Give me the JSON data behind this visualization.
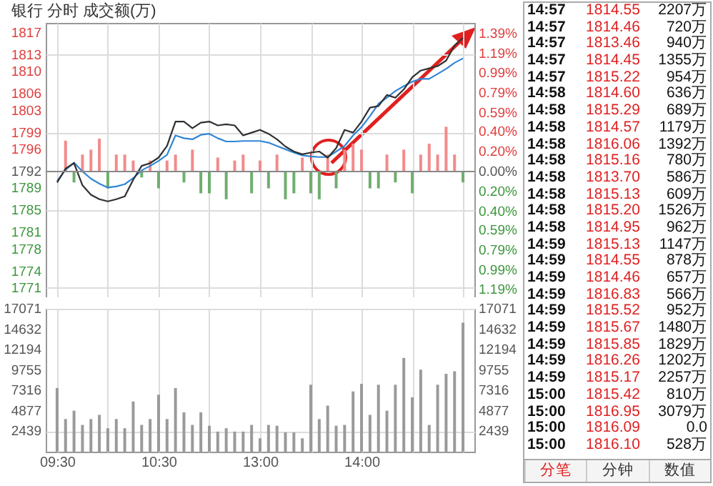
{
  "chart_data": [
    {
      "type": "line",
      "title": "银行 分时 成交额(万)",
      "categories": [
        null,
        null,
        null,
        null,
        null,
        null,
        null,
        null,
        null,
        null,
        null,
        null,
        null,
        null,
        null,
        null,
        null,
        null,
        null,
        null,
        null,
        null,
        null,
        null,
        null,
        null,
        null,
        null,
        null,
        null,
        null,
        null,
        null,
        null,
        null,
        null,
        null,
        null,
        null,
        null,
        null,
        null,
        null,
        null,
        null,
        null,
        null,
        null,
        null
      ],
      "ylim": [
        1769.3,
        1818.8
      ],
      "yticks": [
        1817,
        1813,
        1810,
        1806,
        1803,
        1799,
        1796,
        1792,
        1789,
        1785,
        1781,
        1778,
        1774,
        1771
      ],
      "y2lim": [
        -1.267,
        1.496
      ],
      "y2ticks": [
        {
          "value": 1.39,
          "label": "1.39%"
        },
        {
          "value": 1.19,
          "label": "1.19%"
        },
        {
          "value": 0.99,
          "label": "0.99%"
        },
        {
          "value": 0.79,
          "label": "0.79%"
        },
        {
          "value": 0.59,
          "label": "0.59%"
        },
        {
          "value": 0.4,
          "label": "0.40%"
        },
        {
          "value": 0.2,
          "label": "0.20%"
        },
        {
          "value": 0,
          "label": "0.00%"
        },
        {
          "value": -0.2,
          "label": "0.20%"
        },
        {
          "value": -0.4,
          "label": "0.40%"
        },
        {
          "value": -0.59,
          "label": "0.59%"
        },
        {
          "value": -0.79,
          "label": "0.79%"
        },
        {
          "value": -0.99,
          "label": "0.99%"
        },
        {
          "value": -1.19,
          "label": "1.19%"
        }
      ],
      "grid": true,
      "tick_labels": "y",
      "ref_lines": [
        {
          "axis": "y",
          "value": 1792,
          "color": "#888888"
        }
      ],
      "series": [
        {
          "type": "bar",
          "axis": "y2",
          "color": "#f28b8b",
          "values": [
            null,
            0.31,
            null,
            0.17,
            0.22,
            0.33,
            null,
            0.17,
            0.17,
            0.11,
            null,
            0.11,
            null,
            0.11,
            0.17,
            null,
            0.22,
            null,
            null,
            0.14,
            null,
            0.11,
            0.17,
            null,
            0.11,
            null,
            0.17,
            null,
            null,
            0.14,
            null,
            null,
            0.17,
            null,
            0.22,
            0.28,
            0.22,
            null,
            null,
            0.17,
            null,
            0.22,
            null,
            0.17,
            0.28,
            0.17,
            0.45,
            0.17,
            null
          ]
        },
        {
          "type": "bar",
          "axis": "y2",
          "color": "#6fae6f",
          "values": [
            null,
            null,
            -0.11,
            null,
            null,
            null,
            -0.17,
            null,
            null,
            null,
            -0.06,
            null,
            -0.17,
            null,
            null,
            -0.11,
            null,
            -0.22,
            -0.22,
            null,
            -0.28,
            null,
            null,
            -0.22,
            null,
            -0.17,
            null,
            -0.28,
            -0.22,
            null,
            -0.22,
            -0.28,
            null,
            -0.17,
            null,
            null,
            null,
            -0.17,
            -0.17,
            null,
            -0.11,
            null,
            -0.22,
            null,
            null,
            null,
            null,
            null,
            -0.11
          ]
        },
        {
          "type": "line",
          "color": "#2f86d6",
          "values": [
            1790.3,
            1792.3,
            1793.6,
            1792,
            1790.7,
            1789.8,
            1789.1,
            1789.3,
            1789.7,
            1790.8,
            1792.2,
            1793,
            1793.9,
            1795,
            1798.5,
            1798,
            1797.8,
            1798.6,
            1798.8,
            1798,
            1797.4,
            1797.4,
            1797.5,
            1797.5,
            1797.5,
            1797.2,
            1796.6,
            1796,
            1795.4,
            1794.9,
            1794.7,
            1794.6,
            1794.6,
            1795.6,
            1796.6,
            1798.5,
            1800,
            1802,
            1804.2,
            1805.3,
            1806.5,
            1807.4,
            1808.2,
            1808.7,
            1808.7,
            1809.6,
            1810.5,
            1811.6,
            1812.4
          ]
        },
        {
          "type": "line",
          "color": "#303030",
          "values": [
            1790,
            1792.5,
            1793.5,
            1789.5,
            1787.8,
            1787,
            1786.6,
            1787,
            1787.5,
            1790.5,
            1793,
            1793.5,
            1794.5,
            1796.6,
            1801,
            1801,
            1799.8,
            1800.8,
            1801,
            1800.3,
            1800.5,
            1800.3,
            1798.5,
            1799,
            1799.5,
            1798.8,
            1797.8,
            1796.5,
            1795.6,
            1795.1,
            1795.4,
            1795.6,
            1794.5,
            1796.2,
            1799.5,
            1799,
            1801,
            1803.5,
            1803.8,
            1805.8,
            1805.3,
            1806.8,
            1809,
            1810.2,
            1810.6,
            1811,
            1812,
            1814.7,
            1816.1
          ]
        }
      ]
    },
    {
      "type": "bar",
      "color": "#9a9a9a",
      "categories": [
        "09:30",
        null,
        null,
        null,
        null,
        null,
        null,
        null,
        null,
        null,
        null,
        null,
        "10:30",
        null,
        null,
        null,
        null,
        null,
        null,
        null,
        null,
        null,
        null,
        null,
        "13:00",
        null,
        null,
        null,
        null,
        null,
        null,
        null,
        null,
        null,
        null,
        null,
        "14:00",
        null,
        null,
        null,
        null,
        null,
        null,
        null,
        null,
        null,
        null,
        null,
        null
      ],
      "values": [
        7600,
        3900,
        4900,
        3200,
        3900,
        4400,
        2800,
        3900,
        2800,
        6000,
        3200,
        3900,
        6800,
        3900,
        7600,
        4700,
        3200,
        4700,
        3100,
        2400,
        2800,
        2400,
        2400,
        3200,
        1600,
        3200,
        3100,
        2300,
        2300,
        1600,
        8000,
        3900,
        5500,
        3100,
        3200,
        7200,
        8100,
        4400,
        8000,
        4900,
        8000,
        11200,
        6500,
        9800,
        3200,
        8000,
        9300,
        9600,
        15400
      ],
      "ylim": [
        0,
        17071
      ],
      "yticks": [
        2439,
        4877,
        7316,
        9755,
        12194,
        14632,
        17071
      ],
      "y2lim": [
        0,
        17071
      ],
      "y2ticks": [
        2439,
        4877,
        7316,
        9755,
        12194,
        14632,
        17071
      ],
      "grid": true
    },
    {
      "type": "other",
      "annotations": [
        "14:57 1814.55 2207万",
        "14:57 1814.46 720万",
        "14:57 1813.46 940万",
        "14:57 1814.45 1355万",
        "14:57 1815.22 954万",
        "14:58 1814.60 636万",
        "14:58 1815.29 689万",
        "14:58 1814.57 1179万",
        "14:58 1816.06 1392万",
        "14:58 1815.16 780万",
        "14:58 1813.70 586万",
        "14:58 1815.13 609万",
        "14:58 1815.20 1526万",
        "14:58 1814.95 962万",
        "14:59 1815.13 1147万",
        "14:59 1814.55 878万",
        "14:59 1814.46 657万",
        "14:59 1816.83 566万",
        "14:59 1815.52 952万",
        "14:59 1815.67 1480万",
        "14:59 1815.85 1829万",
        "14:59 1816.26 1202万",
        "14:59 1815.17 2257万",
        "15:00 1815.42 810万",
        "15:00 1816.95 3079万",
        "15:00 1816.09 0.0",
        "15:00 1816.10 528万",
        "分笔 分钟 数值"
      ]
    }
  ]
}
